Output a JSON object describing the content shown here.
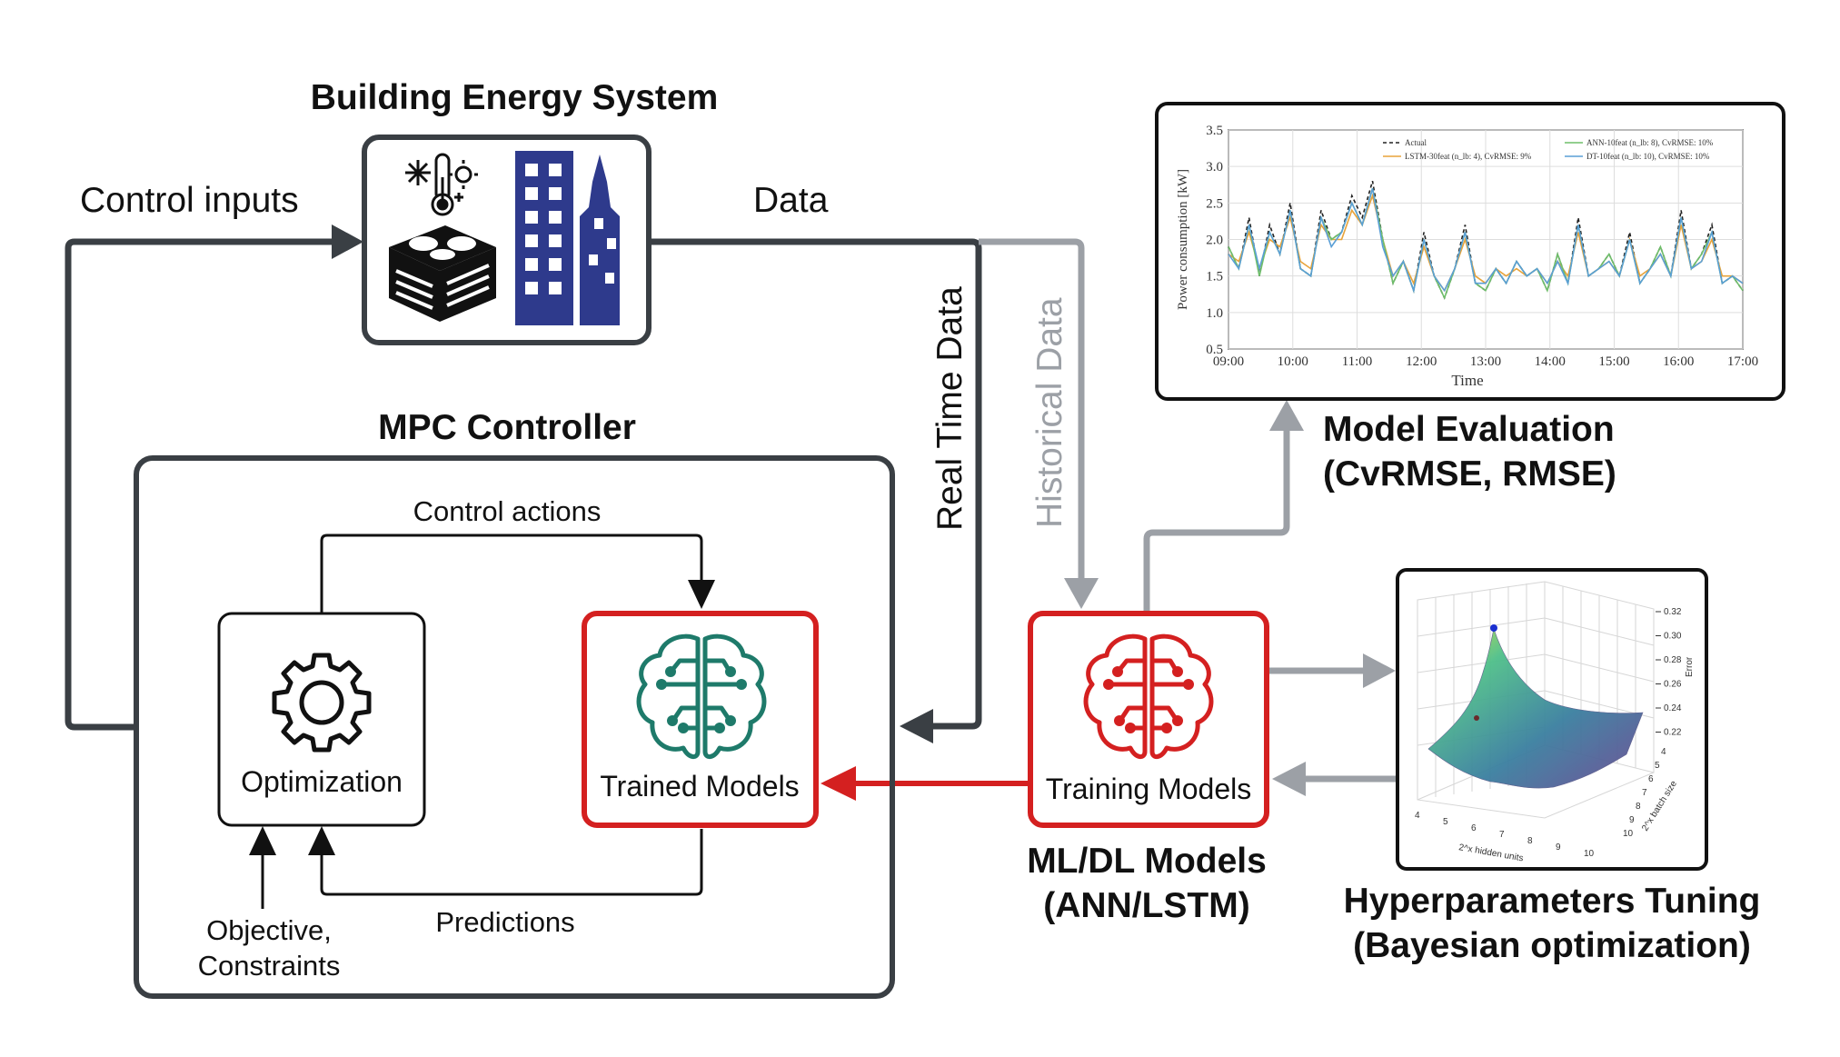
{
  "building": {
    "title": "Building Energy System"
  },
  "mpc": {
    "title": "MPC Controller",
    "control_actions": "Control actions",
    "predictions": "Predictions",
    "objective_line1": "Objective,",
    "objective_line2": "Constraints",
    "optimization": "Optimization",
    "trained_models": "Trained Models"
  },
  "flows": {
    "control_inputs": "Control inputs",
    "data": "Data",
    "real_time_data": "Real Time Data",
    "historical_data": "Historical Data"
  },
  "training": {
    "label": "Training Models",
    "caption_line1": "ML/DL Models",
    "caption_line2": "(ANN/LSTM)"
  },
  "evaluation": {
    "caption_line1": "Model Evaluation",
    "caption_line2": "(CvRMSE, RMSE)"
  },
  "tuning": {
    "caption_line1": "Hyperparameters Tuning",
    "caption_line2": "(Bayesian optimization)"
  },
  "colors": {
    "dark": "#3a3f44",
    "red": "#d42020",
    "gray_arrow": "#9ca0a6",
    "teal": "#1e7a6a",
    "navy": "#2e3a8c"
  },
  "chart_data": [
    {
      "type": "line",
      "xlabel": "Time",
      "ylabel": "Power consumption [kW]",
      "ylim": [
        0.5,
        3.5
      ],
      "yticks": [
        "3.5",
        "3.0",
        "2.5",
        "2.0",
        "1.5",
        "1.0",
        "0.5"
      ],
      "xticks": [
        "09:00",
        "10:00",
        "11:00",
        "12:00",
        "13:00",
        "14:00",
        "15:00",
        "16:00",
        "17:00"
      ],
      "legend": "top",
      "grid": true,
      "series": [
        {
          "name": "Actual",
          "color": "#222222",
          "style": "dashed",
          "values": [
            1.9,
            1.6,
            2.3,
            1.5,
            2.2,
            1.8,
            2.5,
            1.6,
            1.5,
            2.4,
            2.0,
            2.1,
            2.6,
            2.3,
            2.8,
            2.0,
            1.4,
            1.7,
            1.3,
            2.1,
            1.5,
            1.2,
            1.6,
            2.2,
            1.4,
            1.3,
            1.6,
            1.4,
            1.7,
            1.5,
            1.6,
            1.3,
            1.8,
            1.4,
            2.3,
            1.5,
            1.6,
            1.8,
            1.5,
            2.1,
            1.4,
            1.6,
            1.9,
            1.5,
            2.4,
            1.6,
            1.8,
            2.2,
            1.4,
            1.5,
            1.3
          ]
        },
        {
          "name": "LSTM-30feat (n_lb: 4), CvRMSE: 9%",
          "color": "#e8a33a",
          "style": "solid",
          "values": [
            1.8,
            1.7,
            2.1,
            1.6,
            2.0,
            1.9,
            2.3,
            1.7,
            1.6,
            2.2,
            2.0,
            2.0,
            2.4,
            2.2,
            2.6,
            2.0,
            1.5,
            1.7,
            1.4,
            1.9,
            1.5,
            1.3,
            1.6,
            2.0,
            1.5,
            1.4,
            1.6,
            1.5,
            1.6,
            1.5,
            1.6,
            1.4,
            1.7,
            1.5,
            2.1,
            1.5,
            1.6,
            1.7,
            1.5,
            2.0,
            1.5,
            1.6,
            1.8,
            1.5,
            2.2,
            1.6,
            1.7,
            2.0,
            1.5,
            1.5,
            1.4
          ]
        },
        {
          "name": "ANN-10feat (n_lb: 8), CvRMSE: 10%",
          "color": "#6fbf6a",
          "style": "solid",
          "values": [
            1.9,
            1.6,
            2.2,
            1.5,
            2.1,
            1.8,
            2.4,
            1.6,
            1.5,
            2.3,
            2.0,
            2.1,
            2.5,
            2.2,
            2.7,
            2.0,
            1.4,
            1.7,
            1.3,
            2.0,
            1.5,
            1.2,
            1.6,
            2.1,
            1.4,
            1.3,
            1.6,
            1.4,
            1.7,
            1.5,
            1.6,
            1.3,
            1.8,
            1.4,
            2.2,
            1.5,
            1.6,
            1.8,
            1.5,
            2.0,
            1.4,
            1.6,
            1.9,
            1.5,
            2.3,
            1.6,
            1.8,
            2.1,
            1.4,
            1.5,
            1.3
          ]
        },
        {
          "name": "DT-10feat (n_lb: 10), CvRMSE: 10%",
          "color": "#5a9fd6",
          "style": "solid",
          "values": [
            1.8,
            1.6,
            2.2,
            1.6,
            2.1,
            1.8,
            2.4,
            1.6,
            1.5,
            2.3,
            1.9,
            2.1,
            2.5,
            2.2,
            2.7,
            1.9,
            1.5,
            1.7,
            1.3,
            2.0,
            1.5,
            1.3,
            1.6,
            2.1,
            1.4,
            1.4,
            1.6,
            1.4,
            1.7,
            1.5,
            1.6,
            1.4,
            1.7,
            1.4,
            2.2,
            1.5,
            1.6,
            1.7,
            1.5,
            2.0,
            1.4,
            1.6,
            1.8,
            1.5,
            2.3,
            1.6,
            1.7,
            2.1,
            1.4,
            1.5,
            1.4
          ]
        }
      ]
    },
    {
      "type": "surface",
      "xlabel": "2^x hidden units",
      "ylabel": "2^x batch size",
      "zlabel": "Error",
      "xticks": [
        "4",
        "5",
        "6",
        "7",
        "8",
        "9",
        "10"
      ],
      "yticks": [
        "4",
        "5",
        "6",
        "7",
        "8",
        "9",
        "10"
      ],
      "zticks": [
        "0.32",
        "0.30",
        "0.28",
        "0.26",
        "0.24",
        "0.22"
      ]
    }
  ]
}
